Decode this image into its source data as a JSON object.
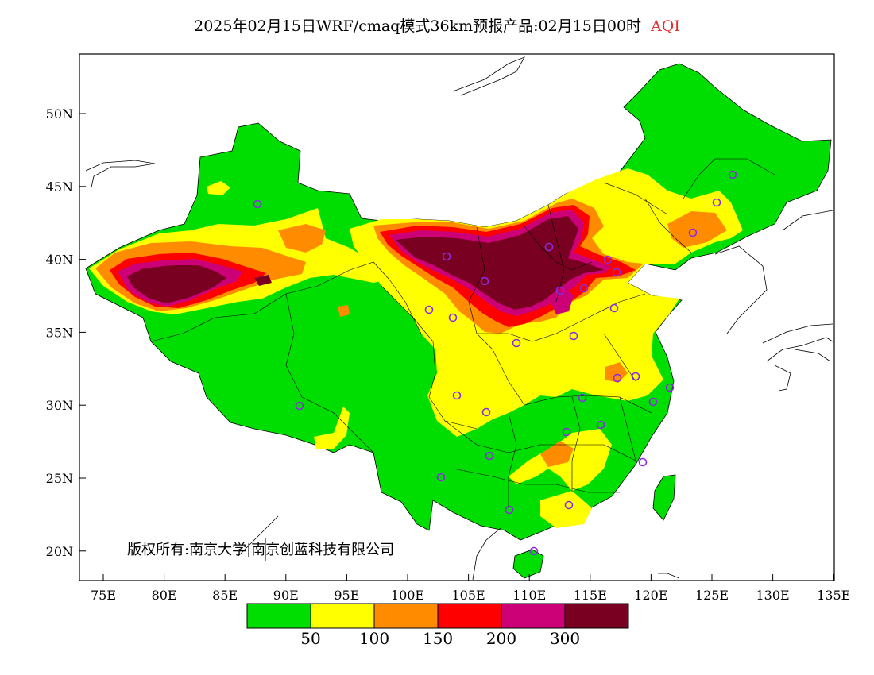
{
  "title": "2025年02月15日WRF/cmaq模式36km预报产品:02月15日00时",
  "variable": "AQI",
  "variable_color": "#e03030",
  "copyright": "版权所有:南京大学|南京创蓝科技有限公司",
  "axes": {
    "x_ticks": [
      "75E",
      "80E",
      "85E",
      "90E",
      "95E",
      "100E",
      "105E",
      "110E",
      "115E",
      "120E",
      "125E",
      "130E",
      "135E"
    ],
    "y_ticks": [
      "50N",
      "45N",
      "40N",
      "35N",
      "30N",
      "25N",
      "20N"
    ]
  },
  "legend": {
    "colors": [
      "#00dd00",
      "#ffff00",
      "#ff8c00",
      "#ff0000",
      "#cc0077",
      "#7a0022"
    ],
    "labels": [
      "50",
      "100",
      "150",
      "200",
      "300"
    ]
  }
}
